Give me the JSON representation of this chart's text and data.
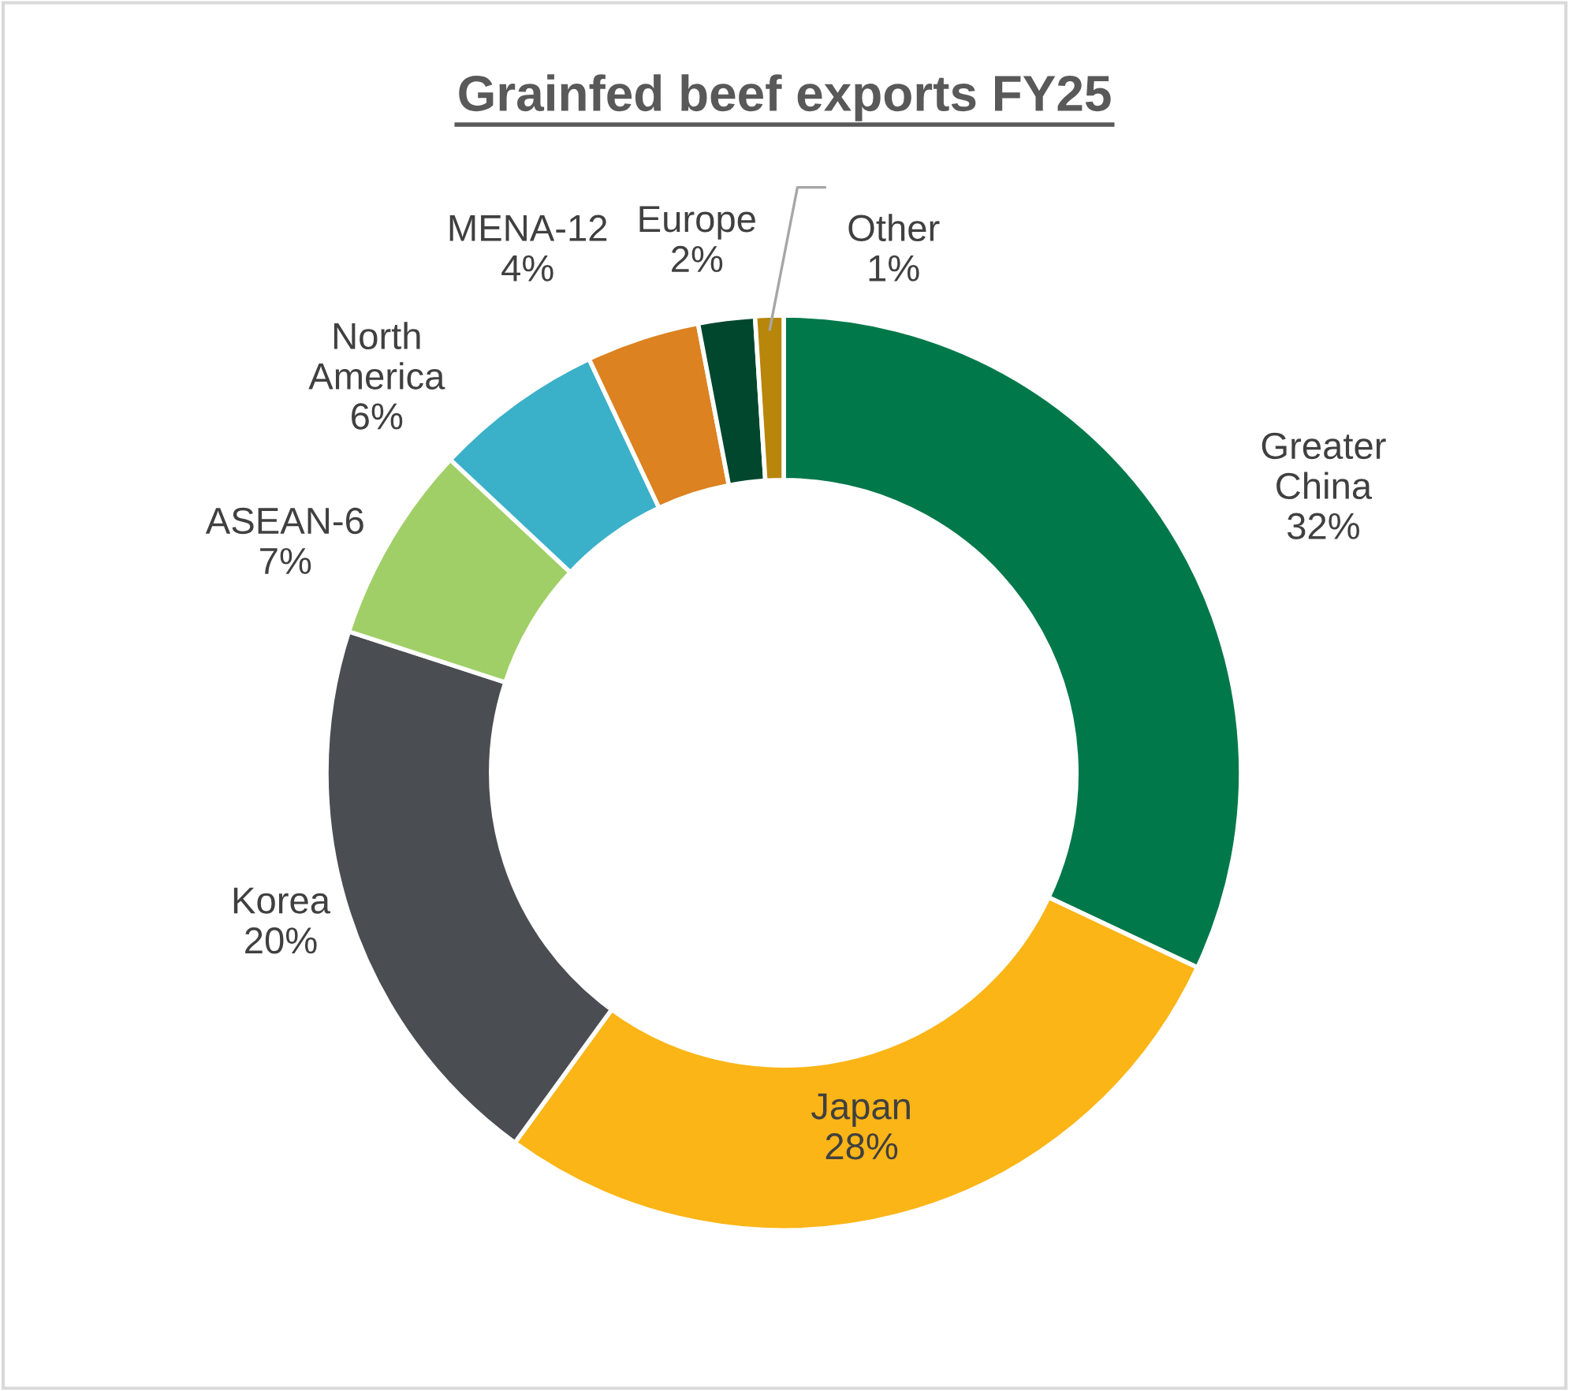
{
  "chart_data": {
    "type": "donut",
    "title": "Grainfed beef exports FY25",
    "categories": [
      "Greater China",
      "Japan",
      "Korea",
      "ASEAN-6",
      "North America",
      "MENA-12",
      "Europe",
      "Other"
    ],
    "values": [
      32,
      28,
      20,
      7,
      6,
      4,
      2,
      1
    ],
    "value_labels": [
      "32%",
      "28%",
      "20%",
      "7%",
      "6%",
      "4%",
      "2%",
      "1%"
    ],
    "colors": [
      "#00784a",
      "#fbb516",
      "#4a4d52",
      "#a0cf67",
      "#3bb0c9",
      "#dc8220",
      "#00472e",
      "#b8860b"
    ]
  }
}
